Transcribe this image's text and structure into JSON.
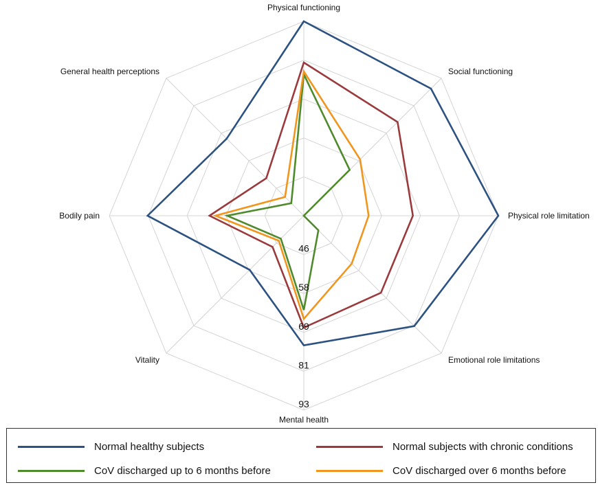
{
  "chart_data": {
    "type": "radar",
    "title": "",
    "axes": [
      "Physical functioning",
      "Social functioning",
      "Physical role limitation",
      "Emotional role limitations",
      "Mental health",
      "Vitality",
      "Bodily pain",
      "General health perceptions"
    ],
    "ticks": [
      "46",
      "58",
      "69",
      "81",
      "93"
    ],
    "r_range": [
      34,
      100
    ],
    "grid": true,
    "legend_position": "bottom",
    "series": [
      {
        "name": "Normal healthy subjects",
        "color": "#2c5282",
        "values": [
          100,
          95,
          100,
          87,
          78,
          60,
          87,
          71
        ]
      },
      {
        "name": "Normal subjects with chronic conditions",
        "color": "#9b3a3d",
        "values": [
          86,
          79,
          71,
          71,
          72,
          49,
          66,
          52
        ]
      },
      {
        "name": "CoV discharged up to 6 months before",
        "color": "#4f8a2c",
        "values": [
          82,
          56,
          34,
          41,
          66,
          45,
          60,
          40
        ]
      },
      {
        "name": "CoV discharged over 6 months before",
        "color": "#f0961e",
        "values": [
          83,
          61,
          56,
          57,
          69,
          46,
          64,
          43
        ]
      }
    ]
  },
  "legend": {
    "items": [
      {
        "label": "Normal healthy subjects"
      },
      {
        "label": "Normal subjects with chronic conditions"
      },
      {
        "label": "CoV discharged up to 6 months before"
      },
      {
        "label": "CoV discharged over 6 months before"
      }
    ]
  }
}
